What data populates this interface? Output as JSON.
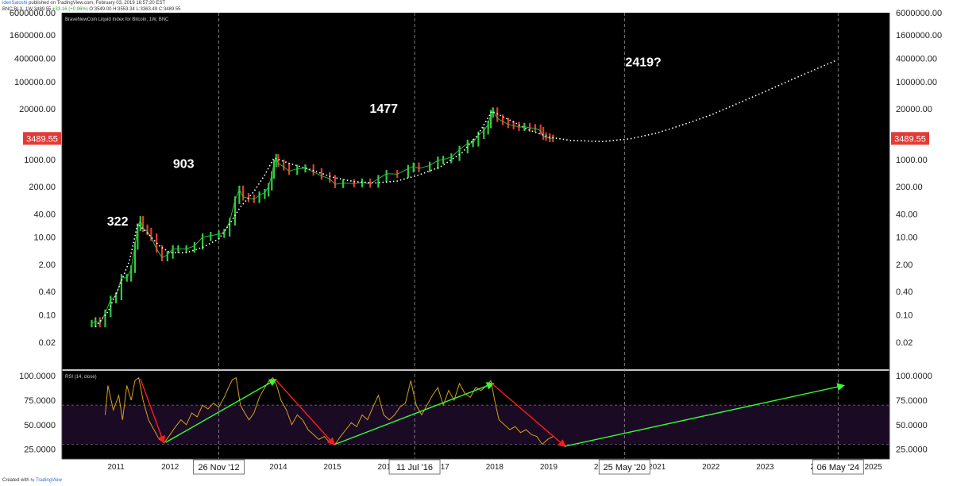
{
  "header": {
    "publisher_user": "idenSatoshi",
    "published_line": " published on TradingView.com, February 03, 2019 16:57:20 EST",
    "symbol_line_prefix": "BNC:BLX, 1W 3489.55 ",
    "symbol_change": "+33.16 (+0.96%)",
    "symbol_ohlc": " O:3549.00 H:3553.34 L:3363.49 C:3489.55"
  },
  "footer": {
    "prefix": "Created with ",
    "brand": "TradingView"
  },
  "colors": {
    "background": "#000000",
    "up": "#2ecc40",
    "down": "#e53935",
    "rsi": "#d4a017",
    "rsi_band": "#1a0a24",
    "arrow_red": "#ff1a1a",
    "arrow_green": "#33ff33",
    "price_tag": "#e53935"
  },
  "chart_data": [
    {
      "type": "line",
      "legend": "BraveNewCoin Liquid Index for Bitcoin, 1W, BNC",
      "y_scale": "log",
      "ylim": [
        0.004,
        6000000
      ],
      "xlim": [
        2010.0,
        2025.3
      ],
      "y_tick_labels": [
        "6000000.00",
        "1600000.00",
        "400000.00",
        "100000.00",
        "20000.00",
        "1000.00",
        "200.00",
        "40.00",
        "10.00",
        "2.00",
        "0.40",
        "0.10",
        "0.02"
      ],
      "y_tick_values": [
        6000000,
        1600000,
        400000,
        100000,
        20000,
        1000,
        200,
        40,
        10,
        2,
        0.4,
        0.1,
        0.02
      ],
      "x_tick_labels": [
        "2011",
        "2012",
        "2014",
        "2015",
        "2016",
        "2017",
        "2018",
        "2019",
        "2020",
        "2021",
        "2022",
        "2023",
        "2024",
        "2025"
      ],
      "x_tick_values": [
        2011,
        2012,
        2014,
        2015,
        2016,
        2017,
        2018,
        2019,
        2020,
        2021,
        2022,
        2023,
        2024,
        2025
      ],
      "last_price": "3489.55",
      "price_series": [
        [
          2010.55,
          0.06
        ],
        [
          2010.62,
          0.07
        ],
        [
          2010.7,
          0.06
        ],
        [
          2010.8,
          0.11
        ],
        [
          2010.9,
          0.25
        ],
        [
          2011.0,
          0.3
        ],
        [
          2011.1,
          0.9
        ],
        [
          2011.2,
          0.9
        ],
        [
          2011.28,
          1.5
        ],
        [
          2011.35,
          6.0
        ],
        [
          2011.4,
          18
        ],
        [
          2011.45,
          28
        ],
        [
          2011.5,
          17
        ],
        [
          2011.58,
          14
        ],
        [
          2011.65,
          10
        ],
        [
          2011.75,
          5
        ],
        [
          2011.85,
          3
        ],
        [
          2011.95,
          3.5
        ],
        [
          2012.05,
          5
        ],
        [
          2012.15,
          5
        ],
        [
          2012.3,
          5
        ],
        [
          2012.45,
          6
        ],
        [
          2012.6,
          10
        ],
        [
          2012.75,
          11
        ],
        [
          2012.9,
          12
        ],
        [
          2013.0,
          13
        ],
        [
          2013.1,
          25
        ],
        [
          2013.2,
          90
        ],
        [
          2013.28,
          170
        ],
        [
          2013.35,
          110
        ],
        [
          2013.45,
          100
        ],
        [
          2013.55,
          95
        ],
        [
          2013.65,
          120
        ],
        [
          2013.75,
          140
        ],
        [
          2013.82,
          200
        ],
        [
          2013.88,
          400
        ],
        [
          2013.92,
          800
        ],
        [
          2013.96,
          1100
        ],
        [
          2014.0,
          800
        ],
        [
          2014.1,
          650
        ],
        [
          2014.2,
          500
        ],
        [
          2014.35,
          580
        ],
        [
          2014.5,
          600
        ],
        [
          2014.65,
          480
        ],
        [
          2014.8,
          380
        ],
        [
          2014.95,
          320
        ],
        [
          2015.05,
          230
        ],
        [
          2015.2,
          250
        ],
        [
          2015.4,
          240
        ],
        [
          2015.55,
          260
        ],
        [
          2015.7,
          235
        ],
        [
          2015.85,
          320
        ],
        [
          2016.0,
          430
        ],
        [
          2016.2,
          420
        ],
        [
          2016.4,
          580
        ],
        [
          2016.5,
          670
        ],
        [
          2016.6,
          590
        ],
        [
          2016.8,
          700
        ],
        [
          2016.95,
          950
        ],
        [
          2017.05,
          1000
        ],
        [
          2017.2,
          1150
        ],
        [
          2017.35,
          1800
        ],
        [
          2017.5,
          2600
        ],
        [
          2017.6,
          2700
        ],
        [
          2017.7,
          4200
        ],
        [
          2017.8,
          5500
        ],
        [
          2017.88,
          8000
        ],
        [
          2017.93,
          15000
        ],
        [
          2017.97,
          17500
        ],
        [
          2018.05,
          11500
        ],
        [
          2018.15,
          9500
        ],
        [
          2018.25,
          8000
        ],
        [
          2018.35,
          7500
        ],
        [
          2018.45,
          6800
        ],
        [
          2018.55,
          7000
        ],
        [
          2018.65,
          6500
        ],
        [
          2018.75,
          6400
        ],
        [
          2018.85,
          5500
        ],
        [
          2018.9,
          4000
        ],
        [
          2018.95,
          3800
        ],
        [
          2019.02,
          3500
        ],
        [
          2019.08,
          3489.55
        ]
      ],
      "curve_series": [
        [
          2010.62,
          0.05
        ],
        [
          2010.85,
          0.12
        ],
        [
          2011.05,
          0.5
        ],
        [
          2011.25,
          2.5
        ],
        [
          2011.4,
          22
        ],
        [
          2011.6,
          12
        ],
        [
          2011.8,
          6
        ],
        [
          2012.0,
          4
        ],
        [
          2012.3,
          4
        ],
        [
          2012.6,
          5.5
        ],
        [
          2012.9,
          9
        ],
        [
          2013.1,
          22
        ],
        [
          2013.3,
          60
        ],
        [
          2013.55,
          150
        ],
        [
          2013.75,
          400
        ],
        [
          2013.92,
          1100
        ],
        [
          2014.2,
          800
        ],
        [
          2014.6,
          550
        ],
        [
          2015.0,
          350
        ],
        [
          2015.4,
          270
        ],
        [
          2015.8,
          250
        ],
        [
          2016.2,
          280
        ],
        [
          2016.6,
          400
        ],
        [
          2017.0,
          650
        ],
        [
          2017.4,
          1500
        ],
        [
          2017.7,
          4500
        ],
        [
          2017.95,
          17500
        ],
        [
          2018.3,
          10000
        ],
        [
          2018.6,
          6000
        ],
        [
          2019.0,
          3800
        ],
        [
          2019.4,
          3100
        ],
        [
          2020.0,
          2900
        ],
        [
          2020.5,
          3400
        ],
        [
          2021.0,
          4800
        ],
        [
          2021.5,
          8000
        ],
        [
          2022.0,
          14000
        ],
        [
          2022.5,
          28000
        ],
        [
          2023.0,
          56000
        ],
        [
          2023.5,
          115000
        ],
        [
          2024.0,
          230000
        ],
        [
          2024.3,
          350000
        ]
      ],
      "annotations": [
        {
          "text": "322",
          "x": 2011.03,
          "y": 20
        },
        {
          "text": "903",
          "x": 2012.25,
          "y": 600
        },
        {
          "text": "1477",
          "x": 2015.95,
          "y": 16000
        },
        {
          "text": "2419?",
          "x": 2020.75,
          "y": 250000
        }
      ],
      "vertical_markers": [
        {
          "label": "26 Nov '12",
          "x": 2012.9
        },
        {
          "label": "11 Jul '16",
          "x": 2016.52
        },
        {
          "label": "25 May '20",
          "x": 2020.4
        },
        {
          "label": "06 May '24",
          "x": 2024.35
        }
      ]
    },
    {
      "type": "line",
      "legend": "RSI (14, close)",
      "ylim": [
        15,
        105
      ],
      "y_tick_labels": [
        "100.0000",
        "75.0000",
        "50.0000",
        "25.0000"
      ],
      "y_tick_values": [
        100,
        75,
        50,
        25
      ],
      "band": [
        30,
        70
      ],
      "rsi_series": [
        [
          2010.8,
          60
        ],
        [
          2010.85,
          90
        ],
        [
          2010.95,
          65
        ],
        [
          2011.05,
          80
        ],
        [
          2011.12,
          55
        ],
        [
          2011.2,
          90
        ],
        [
          2011.28,
          75
        ],
        [
          2011.35,
          95
        ],
        [
          2011.42,
          98
        ],
        [
          2011.5,
          75
        ],
        [
          2011.6,
          55
        ],
        [
          2011.7,
          45
        ],
        [
          2011.8,
          35
        ],
        [
          2011.9,
          32
        ],
        [
          2012.0,
          40
        ],
        [
          2012.1,
          48
        ],
        [
          2012.2,
          55
        ],
        [
          2012.3,
          50
        ],
        [
          2012.4,
          62
        ],
        [
          2012.5,
          58
        ],
        [
          2012.6,
          70
        ],
        [
          2012.7,
          66
        ],
        [
          2012.8,
          72
        ],
        [
          2012.9,
          68
        ],
        [
          2013.0,
          78
        ],
        [
          2013.08,
          88
        ],
        [
          2013.15,
          96
        ],
        [
          2013.22,
          98
        ],
        [
          2013.3,
          70
        ],
        [
          2013.38,
          62
        ],
        [
          2013.46,
          55
        ],
        [
          2013.55,
          62
        ],
        [
          2013.65,
          78
        ],
        [
          2013.75,
          88
        ],
        [
          2013.82,
          94
        ],
        [
          2013.9,
          98
        ],
        [
          2013.97,
          90
        ],
        [
          2014.05,
          75
        ],
        [
          2014.15,
          65
        ],
        [
          2014.25,
          50
        ],
        [
          2014.35,
          60
        ],
        [
          2014.45,
          55
        ],
        [
          2014.55,
          45
        ],
        [
          2014.65,
          40
        ],
        [
          2014.75,
          35
        ],
        [
          2014.85,
          38
        ],
        [
          2014.95,
          32
        ],
        [
          2015.05,
          30
        ],
        [
          2015.15,
          38
        ],
        [
          2015.25,
          45
        ],
        [
          2015.35,
          52
        ],
        [
          2015.45,
          48
        ],
        [
          2015.55,
          60
        ],
        [
          2015.65,
          55
        ],
        [
          2015.75,
          68
        ],
        [
          2015.85,
          80
        ],
        [
          2015.95,
          60
        ],
        [
          2016.05,
          55
        ],
        [
          2016.15,
          60
        ],
        [
          2016.25,
          68
        ],
        [
          2016.35,
          72
        ],
        [
          2016.45,
          95
        ],
        [
          2016.55,
          70
        ],
        [
          2016.65,
          60
        ],
        [
          2016.75,
          70
        ],
        [
          2016.85,
          80
        ],
        [
          2016.95,
          88
        ],
        [
          2017.05,
          70
        ],
        [
          2017.15,
          85
        ],
        [
          2017.25,
          75
        ],
        [
          2017.35,
          92
        ],
        [
          2017.45,
          82
        ],
        [
          2017.55,
          78
        ],
        [
          2017.65,
          88
        ],
        [
          2017.75,
          85
        ],
        [
          2017.85,
          90
        ],
        [
          2017.93,
          95
        ],
        [
          2018.0,
          75
        ],
        [
          2018.08,
          55
        ],
        [
          2018.18,
          50
        ],
        [
          2018.28,
          45
        ],
        [
          2018.38,
          48
        ],
        [
          2018.48,
          42
        ],
        [
          2018.58,
          45
        ],
        [
          2018.68,
          40
        ],
        [
          2018.78,
          38
        ],
        [
          2018.88,
          30
        ],
        [
          2018.98,
          35
        ],
        [
          2019.08,
          38
        ]
      ],
      "arrows": [
        {
          "color": "red",
          "from": [
            2011.45,
            97
          ],
          "to": [
            2011.88,
            32
          ]
        },
        {
          "color": "green",
          "from": [
            2011.92,
            32
          ],
          "to": [
            2013.95,
            96
          ]
        },
        {
          "color": "red",
          "from": [
            2013.95,
            96
          ],
          "to": [
            2015.03,
            30
          ]
        },
        {
          "color": "green",
          "from": [
            2015.05,
            30
          ],
          "to": [
            2017.97,
            92
          ]
        },
        {
          "color": "red",
          "from": [
            2017.95,
            92
          ],
          "to": [
            2019.3,
            28
          ]
        },
        {
          "color": "green",
          "from": [
            2019.3,
            28
          ],
          "to": [
            2024.45,
            90
          ]
        }
      ]
    }
  ]
}
